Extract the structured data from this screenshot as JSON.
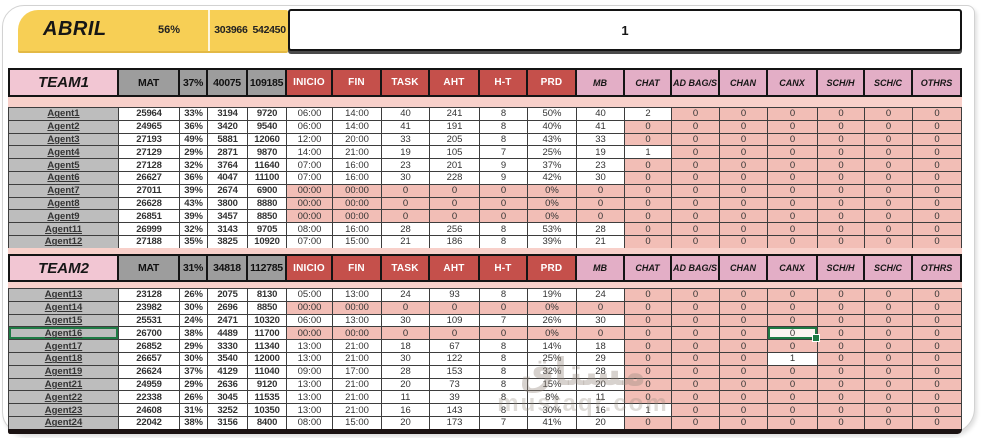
{
  "topbar": {
    "month": "ABRIL",
    "month_percent": "56%",
    "total_a": "303966",
    "total_b": "542450",
    "box_value": "1"
  },
  "teams": [
    {
      "header": [
        "TEAM1",
        "MAT",
        "37%",
        "40075",
        "109185",
        "INICIO",
        "FIN",
        "TASK",
        "AHT",
        "H-T",
        "PRD",
        "MB",
        "CHAT",
        "AD BAG/S",
        "CHAN",
        "CANX",
        "SCH/H",
        "SCH/C",
        "OTHRS"
      ],
      "rows": [
        [
          "Agent1",
          "25964",
          "33%",
          "3194",
          "9720",
          "06:00",
          "14:00",
          "40",
          "241",
          "8",
          "50%",
          "40",
          "2",
          "0",
          "0",
          "0",
          "0",
          "0",
          "0"
        ],
        [
          "Agent2",
          "24965",
          "36%",
          "3420",
          "9540",
          "06:00",
          "14:00",
          "41",
          "191",
          "8",
          "40%",
          "41",
          "0",
          "0",
          "0",
          "0",
          "0",
          "0",
          "0"
        ],
        [
          "Agent3",
          "27193",
          "49%",
          "5881",
          "12060",
          "12:00",
          "20:00",
          "33",
          "205",
          "8",
          "43%",
          "33",
          "0",
          "0",
          "0",
          "0",
          "0",
          "0",
          "0"
        ],
        [
          "Agent4",
          "27129",
          "29%",
          "2871",
          "9870",
          "14:00",
          "21:00",
          "19",
          "105",
          "7",
          "25%",
          "19",
          "1",
          "0",
          "0",
          "0",
          "0",
          "0",
          "0"
        ],
        [
          "Agent5",
          "27128",
          "32%",
          "3764",
          "11640",
          "07:00",
          "16:00",
          "23",
          "201",
          "9",
          "37%",
          "23",
          "0",
          "0",
          "0",
          "0",
          "0",
          "0",
          "0"
        ],
        [
          "Agent6",
          "26627",
          "36%",
          "4047",
          "11100",
          "07:00",
          "16:00",
          "30",
          "228",
          "9",
          "42%",
          "30",
          "0",
          "0",
          "0",
          "0",
          "0",
          "0",
          "0"
        ],
        [
          "Agent7",
          "27011",
          "39%",
          "2674",
          "6900",
          "00:00",
          "00:00",
          "0",
          "0",
          "0",
          "0%",
          "0",
          "0",
          "0",
          "0",
          "0",
          "0",
          "0",
          "0"
        ],
        [
          "Agent8",
          "26628",
          "43%",
          "3800",
          "8880",
          "00:00",
          "00:00",
          "0",
          "0",
          "0",
          "0%",
          "0",
          "0",
          "0",
          "0",
          "0",
          "0",
          "0",
          "0"
        ],
        [
          "Agent9",
          "26851",
          "39%",
          "3457",
          "8850",
          "00:00",
          "00:00",
          "0",
          "0",
          "0",
          "0%",
          "0",
          "0",
          "0",
          "0",
          "0",
          "0",
          "0",
          "0"
        ],
        [
          "Agent11",
          "26999",
          "32%",
          "3143",
          "9705",
          "08:00",
          "16:00",
          "28",
          "256",
          "8",
          "53%",
          "28",
          "0",
          "0",
          "0",
          "0",
          "0",
          "0",
          "0"
        ],
        [
          "Agent12",
          "27188",
          "35%",
          "3825",
          "10920",
          "07:00",
          "15:00",
          "21",
          "186",
          "8",
          "39%",
          "21",
          "0",
          "0",
          "0",
          "0",
          "0",
          "0",
          "0"
        ]
      ]
    },
    {
      "header": [
        "TEAM2",
        "MAT",
        "31%",
        "34818",
        "112785",
        "INICIO",
        "FIN",
        "TASK",
        "AHT",
        "H-T",
        "PRD",
        "MB",
        "CHAT",
        "AD BAG/S",
        "CHAN",
        "CANX",
        "SCH/H",
        "SCH/C",
        "OTHRS"
      ],
      "rows": [
        [
          "Agent13",
          "23128",
          "26%",
          "2075",
          "8130",
          "05:00",
          "13:00",
          "24",
          "93",
          "8",
          "19%",
          "24",
          "0",
          "0",
          "0",
          "0",
          "0",
          "0",
          "0"
        ],
        [
          "Agent14",
          "23982",
          "30%",
          "2696",
          "8850",
          "00:00",
          "00:00",
          "0",
          "0",
          "0",
          "0%",
          "0",
          "0",
          "0",
          "0",
          "0",
          "0",
          "0",
          "0"
        ],
        [
          "Agent15",
          "25531",
          "24%",
          "2471",
          "10320",
          "06:00",
          "13:00",
          "30",
          "109",
          "7",
          "26%",
          "30",
          "0",
          "0",
          "0",
          "0",
          "0",
          "0",
          "0"
        ],
        [
          "Agent16",
          "26700",
          "38%",
          "4489",
          "11700",
          "00:00",
          "00:00",
          "0",
          "0",
          "0",
          "0%",
          "0",
          "0",
          "0",
          "0",
          "0",
          "0",
          "0",
          "0"
        ],
        [
          "Agent17",
          "26852",
          "29%",
          "3330",
          "11340",
          "13:00",
          "21:00",
          "18",
          "67",
          "8",
          "14%",
          "18",
          "0",
          "0",
          "0",
          "0",
          "0",
          "0",
          "0"
        ],
        [
          "Agent18",
          "26657",
          "30%",
          "3540",
          "12000",
          "13:00",
          "21:00",
          "30",
          "122",
          "8",
          "25%",
          "29",
          "0",
          "0",
          "0",
          "1",
          "0",
          "0",
          "0"
        ],
        [
          "Agent19",
          "26624",
          "37%",
          "4129",
          "11040",
          "09:00",
          "17:00",
          "28",
          "153",
          "8",
          "32%",
          "28",
          "0",
          "0",
          "0",
          "0",
          "0",
          "0",
          "0"
        ],
        [
          "Agent21",
          "24959",
          "29%",
          "2636",
          "9120",
          "13:00",
          "21:00",
          "20",
          "73",
          "8",
          "15%",
          "20",
          "0",
          "0",
          "0",
          "0",
          "0",
          "0",
          "0"
        ],
        [
          "Agent22",
          "22338",
          "26%",
          "3045",
          "11535",
          "13:00",
          "21:00",
          "11",
          "39",
          "8",
          "8%",
          "11",
          "0",
          "0",
          "0",
          "0",
          "0",
          "0",
          "0"
        ],
        [
          "Agent23",
          "24608",
          "31%",
          "3252",
          "10350",
          "13:00",
          "21:00",
          "16",
          "143",
          "8",
          "30%",
          "16",
          "1",
          "0",
          "0",
          "0",
          "0",
          "0",
          "0"
        ],
        [
          "Agent24",
          "22042",
          "38%",
          "3156",
          "8400",
          "08:00",
          "15:00",
          "20",
          "173",
          "7",
          "41%",
          "20",
          "0",
          "0",
          "0",
          "0",
          "0",
          "0",
          "0"
        ]
      ]
    }
  ],
  "selection": {
    "team_index": 1,
    "row_index": 3,
    "outlined_cols": [
      0,
      15
    ],
    "handle_col": 15
  },
  "watermark": {
    "line1": "مستاق",
    "line2": "mustaqr.com"
  },
  "colors": {
    "banner_yellow": "#f7cf55",
    "header_red": "#c5504b",
    "header_pink": "#e3aec6",
    "team_pink": "#f2c6d3",
    "header_gray": "#9d9d9d",
    "zero_cell_salmon": "#f2beb6",
    "strip_pink": "#f8d0ca",
    "selection_green": "#1e7a44"
  }
}
